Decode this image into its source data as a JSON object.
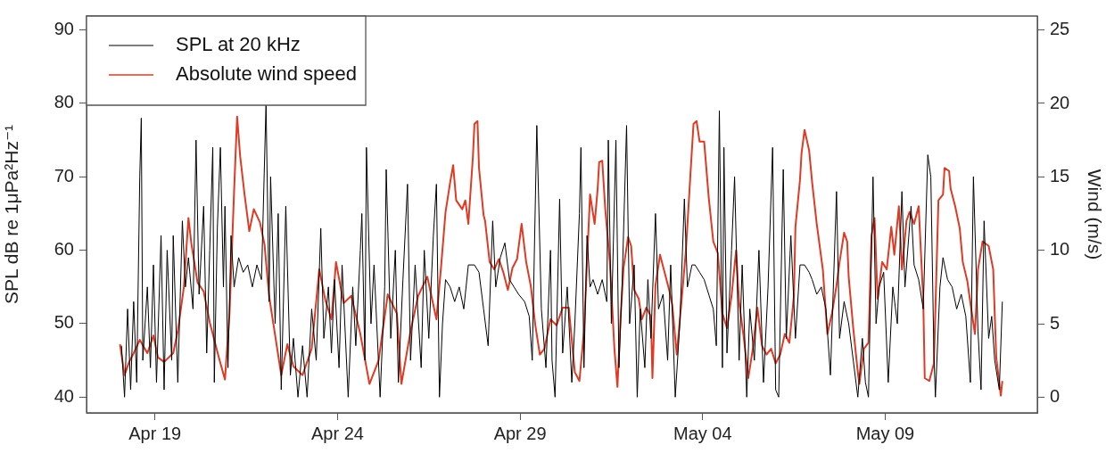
{
  "chart_data": {
    "type": "line",
    "ylabel": "SPL dB re 1μPa²Hz⁻¹",
    "y2label": "Wind (m/s)",
    "xlim": [
      "--04-17T03:00",
      "--05-13T04:00"
    ],
    "xticks": [
      {
        "value": "--04-19",
        "label": "Apr 19"
      },
      {
        "value": "--04-24",
        "label": "Apr 24"
      },
      {
        "value": "--04-29",
        "label": "Apr 29"
      },
      {
        "value": "--05-04",
        "label": "May 04"
      },
      {
        "value": "--05-09",
        "label": "May 09"
      }
    ],
    "ylim": [
      37.85,
      91.9
    ],
    "yticks": [
      40,
      50,
      60,
      70,
      80,
      90
    ],
    "y2lim": [
      -1.07,
      25.95
    ],
    "y2ticks": [
      0,
      5,
      10,
      15,
      20,
      25
    ],
    "grid": false,
    "legend": "top left",
    "marker": "none",
    "line_style": "solid",
    "series": [
      {
        "name": "SPL at 20 kHz",
        "color": "#000000",
        "x": [
          "--04-18T02:00",
          "--04-18T04:00",
          "--04-18T06:00",
          "--04-18T08:00",
          "--04-18T10:00",
          "--04-18T12:00",
          "--04-18T14:00",
          "--04-18T15:00",
          "--04-18T16:00",
          "--04-18T19:00",
          "--04-18T21:00",
          "--04-18T23:00",
          "--04-19T01:00",
          "--04-19T04:00",
          "--04-19T06:00",
          "--04-19T08:00",
          "--04-19T11:00",
          "--04-19T12:00",
          "--04-19T15:00",
          "--04-19T18:00",
          "--04-19T20:00",
          "--04-19T22:00",
          "--04-20T01:00",
          "--04-20T03:00",
          "--04-20T05:00",
          "--04-20T08:00",
          "--04-20T10:00",
          "--04-20T12:00",
          "--04-20T14:00",
          "--04-20T15:00",
          "--04-20T17:00",
          "--04-20T19:00",
          "--04-20T21:00",
          "--04-20T22:00",
          "--04-21T00:00",
          "--04-21T02:00",
          "--04-21T04:00",
          "--04-21T07:00",
          "--04-21T10:00",
          "--04-21T13:00",
          "--04-21T16:00",
          "--04-21T19:00",
          "--04-21T22:00",
          "--04-22T01:00",
          "--04-22T03:00",
          "--04-22T04:00",
          "--04-22T07:00",
          "--04-22T09:00",
          "--04-22T11:00",
          "--04-22T14:00",
          "--04-22T17:00",
          "--04-22T19:00",
          "--04-22T22:00",
          "--04-23T01:00",
          "--04-23T04:00",
          "--04-23T07:00",
          "--04-23T10:00",
          "--04-23T13:00",
          "--04-23T15:00",
          "--04-23T18:00",
          "--04-23T20:00",
          "--04-23T22:00",
          "--04-24T01:00",
          "--04-24T03:00",
          "--04-24T07:00",
          "--04-24T10:00",
          "--04-24T12:00",
          "--04-24T15:00",
          "--04-24T16:00",
          "--04-24T18:00",
          "--04-24T19:00",
          "--04-24T22:00",
          "--04-25T00:00",
          "--04-25T04:00",
          "--04-25T07:00",
          "--04-25T08:00",
          "--04-25T11:00",
          "--04-25T14:00",
          "--04-25T16:00",
          "--04-25T19:00",
          "--04-25T22:00",
          "--04-26T00:00",
          "--04-26T03:00",
          "--04-26T07:00",
          "--04-26T09:00",
          "--04-26T12:00",
          "--04-26T15:00",
          "--04-26T17:00",
          "--04-26T19:00",
          "--04-26T21:00",
          "--04-26T23:00",
          "--04-27T02:00",
          "--04-27T05:00",
          "--04-27T08:00",
          "--04-27T11:00",
          "--04-27T14:00",
          "--04-27T18:00",
          "--04-27T21:00",
          "--04-28T00:00",
          "--04-28T03:00",
          "--04-28T06:00",
          "--04-28T08:00",
          "--04-28T11:00",
          "--04-28T14:00",
          "--04-28T17:00",
          "--04-28T20:00",
          "--04-28T23:00",
          "--04-29T03:00",
          "--04-29T06:00",
          "--04-29T08:00",
          "--04-29T11:00",
          "--04-29T14:00",
          "--04-29T17:00",
          "--04-29T20:00",
          "--04-29T21:00",
          "--04-29T23:00",
          "--04-30T02:00",
          "--04-30T04:00",
          "--04-30T07:00",
          "--04-30T10:00",
          "--04-30T12:00",
          "--04-30T15:00",
          "--04-30T16:00",
          "--04-30T18:00",
          "--04-30T20:00",
          "--04-30T22:00",
          "--05-01T00:00",
          "--05-01T03:00",
          "--05-01T06:00",
          "--05-01T09:00",
          "--05-01T10:00",
          "--05-01T12:00",
          "--05-01T15:00",
          "--05-01T17:00",
          "--05-01T19:00",
          "--05-01T22:00",
          "--05-02T00:00",
          "--05-02T03:00",
          "--05-02T05:00",
          "--05-02T07:00",
          "--05-02T10:00",
          "--05-02T12:00",
          "--05-02T14:00",
          "--05-02T17:00",
          "--05-02T19:00",
          "--05-02T22:00",
          "--05-03T01:00",
          "--05-03T03:00",
          "--05-03T06:00",
          "--05-03T09:00",
          "--05-03T12:00",
          "--05-03T14:00",
          "--05-03T17:00",
          "--05-03T19:00",
          "--05-03T22:00",
          "--05-04T01:00",
          "--05-04T04:00",
          "--05-04T07:00",
          "--05-04T09:00",
          "--05-04T11:00",
          "--05-04T13:00",
          "--05-04T14:00",
          "--05-04T16:00",
          "--05-04T19:00",
          "--05-04T21:00",
          "--05-05T00:00",
          "--05-05T02:00",
          "--05-05T05:00",
          "--05-05T07:00",
          "--05-05T10:00",
          "--05-05T13:00",
          "--05-05T16:00",
          "--05-05T19:00",
          "--05-05T22:00",
          "--05-06T00:00",
          "--05-06T02:00",
          "--05-06T05:00",
          "--05-06T07:00",
          "--05-06T10:00",
          "--05-06T13:00",
          "--05-06T16:00",
          "--05-06T19:00",
          "--05-06T22:00",
          "--05-07T00:00",
          "--05-07T03:00",
          "--05-07T06:00",
          "--05-07T09:00",
          "--05-07T12:00",
          "--05-07T16:00",
          "--05-07T18:00",
          "--05-07T21:00",
          "--05-08T00:00",
          "--05-08T03:00",
          "--05-08T06:00",
          "--05-08T09:00",
          "--05-08T11:00",
          "--05-08T13:00",
          "--05-08T16:00",
          "--05-08T18:00",
          "--05-08T20:00",
          "--05-08T23:00",
          "--05-09T02:00",
          "--05-09T05:00",
          "--05-09T08:00",
          "--05-09T11:00",
          "--05-09T13:00",
          "--05-09T17:00",
          "--05-09T19:00",
          "--05-09T22:00",
          "--05-10T01:00",
          "--05-10T04:00",
          "--05-10T06:00",
          "--05-10T08:00",
          "--05-10T09:00",
          "--05-10T12:00",
          "--05-10T14:00",
          "--05-10T17:00",
          "--05-10T20:00",
          "--05-10T23:00",
          "--05-11T02:00",
          "--05-11T05:00",
          "--05-11T08:00",
          "--05-11T10:00",
          "--05-11T13:00",
          "--05-11T15:00",
          "--05-11T17:00",
          "--05-11T20:00",
          "--05-11T22:00",
          "--05-12T00:00",
          "--05-12T03:00",
          "--05-12T05:00"
        ],
        "values": [
          47,
          40,
          52,
          41,
          53,
          42,
          70,
          78,
          45,
          55,
          44,
          58,
          42,
          62,
          41,
          60,
          45,
          62,
          42,
          64,
          55,
          59,
          52,
          75,
          54,
          66,
          46,
          60,
          74,
          42,
          63,
          74,
          55,
          66,
          44,
          62,
          55,
          59,
          57,
          58,
          55,
          58,
          56,
          80,
          53,
          70,
          50,
          65,
          41,
          66,
          43,
          48,
          40,
          47,
          40,
          52,
          45,
          63,
          48,
          55,
          46,
          56,
          44,
          58,
          40,
          55,
          47,
          60,
          65,
          45,
          74,
          50,
          58,
          40,
          55,
          71,
          48,
          60,
          42,
          56,
          69,
          45,
          58,
          44,
          60,
          48,
          62,
          69,
          40,
          50,
          56,
          55,
          53,
          55,
          52,
          58,
          58,
          57,
          52,
          47,
          64,
          55,
          59,
          61,
          56,
          55,
          54,
          53,
          51,
          45,
          77,
          52,
          44,
          60,
          45,
          40,
          67,
          46,
          55,
          42,
          50,
          65,
          74,
          44,
          62,
          55,
          56,
          54,
          56,
          53,
          75,
          50,
          75,
          44,
          55,
          77,
          50,
          58,
          40,
          52,
          44,
          56,
          48,
          65,
          52,
          54,
          45,
          58,
          40,
          50,
          67,
          55,
          58,
          58,
          57,
          56,
          54,
          52,
          47,
          79,
          44,
          74,
          46,
          60,
          70,
          45,
          58,
          40,
          52,
          45,
          60,
          42,
          55,
          74,
          41,
          40,
          71,
          48,
          62,
          48,
          58,
          58,
          57,
          56,
          54,
          55,
          52,
          43,
          68,
          48,
          53,
          50,
          45,
          40,
          48,
          42,
          40,
          70,
          50,
          55,
          57,
          42,
          55,
          50,
          68,
          55,
          66,
          58,
          56,
          52,
          73,
          70,
          46,
          40,
          55,
          59,
          56,
          55,
          52,
          54,
          51,
          42,
          70,
          49,
          41,
          64,
          48,
          51,
          45,
          41,
          53
        ]
      },
      {
        "name": "Absolute wind speed",
        "color": "#e03a24",
        "axis": "y2",
        "x": [
          "--04-18T01:00",
          "--04-18T04:00",
          "--04-18T07:00",
          "--04-18T10:00",
          "--04-18T14:00",
          "--04-18T19:00",
          "--04-18T23:00",
          "--04-19T02:00",
          "--04-19T06:00",
          "--04-19T12:00",
          "--04-19T15:00",
          "--04-19T19:00",
          "--04-19T22:00",
          "--04-20T00:00",
          "--04-20T04:00",
          "--04-20T08:00",
          "--04-20T12:00",
          "--04-20T18:00",
          "--04-20T22:00",
          "--04-21T01:00",
          "--04-21T04:00",
          "--04-21T06:00",
          "--04-21T08:00",
          "--04-21T11:00",
          "--04-21T14:00",
          "--04-21T17:00",
          "--04-21T21:00",
          "--04-22T00:00",
          "--04-22T03:00",
          "--04-22T07:00",
          "--04-22T11:00",
          "--04-22T15:00",
          "--04-22T19:00",
          "--04-23T01:00",
          "--04-23T07:00",
          "--04-23T12:00",
          "--04-23T16:00",
          "--04-23T20:00",
          "--04-23T23:00",
          "--04-24T04:00",
          "--04-24T09:00",
          "--04-24T15:00",
          "--04-24T21:00",
          "--04-25T03:00",
          "--04-25T09:00",
          "--04-25T15:00",
          "--04-25T18:00",
          "--04-26T00:00",
          "--04-26T05:00",
          "--04-26T11:00",
          "--04-26T17:00",
          "--04-26T20:00",
          "--04-26T23:00",
          "--04-27T02:00",
          "--04-27T04:00",
          "--04-27T06:00",
          "--04-27T10:00",
          "--04-27T12:00",
          "--04-27T14:00",
          "--04-27T17:00",
          "--04-27T18:00",
          "--04-27T20:00",
          "--04-27T21:00",
          "--04-28T00:00",
          "--04-28T01:00",
          "--04-28T04:00",
          "--04-28T07:00",
          "--04-28T10:00",
          "--04-28T13:00",
          "--04-28T16:00",
          "--04-28T19:00",
          "--04-28T22:00",
          "--04-29T01:00",
          "--04-29T04:00",
          "--04-29T07:00",
          "--04-29T10:00",
          "--04-29T13:00",
          "--04-29T16:00",
          "--04-29T20:00",
          "--04-30T00:00",
          "--04-30T04:00",
          "--04-30T08:00",
          "--04-30T12:00",
          "--04-30T15:00",
          "--04-30T18:00",
          "--04-30T21:00",
          "--04-30T22:00",
          "--05-01T01:00",
          "--05-01T03:00",
          "--05-01T04:00",
          "--05-01T06:00",
          "--05-01T08:00",
          "--05-01T11:00",
          "--05-01T14:00",
          "--05-01T16:00",
          "--05-01T18:00",
          "--05-01T20:00",
          "--05-01T23:00",
          "--05-02T01:00",
          "--05-02T03:00",
          "--05-02T06:00",
          "--05-02T08:00",
          "--05-02T11:00",
          "--05-02T14:00",
          "--05-02T15:00",
          "--05-02T17:00",
          "--05-02T20:00",
          "--05-02T23:00",
          "--05-03T02:00",
          "--05-03T04:00",
          "--05-03T07:00",
          "--05-03T10:00",
          "--05-03T13:00",
          "--05-03T16:00",
          "--05-03T18:00",
          "--05-03T20:00",
          "--05-03T22:00",
          "--05-04T01:00",
          "--05-04T04:00",
          "--05-04T07:00",
          "--05-04T10:00",
          "--05-04T13:00",
          "--05-04T16:00",
          "--05-04T19:00",
          "--05-04T22:00",
          "--05-05T00:00",
          "--05-05T03:00",
          "--05-05T06:00",
          "--05-05T09:00",
          "--05-05T12:00",
          "--05-05T15:00",
          "--05-05T18:00",
          "--05-05T21:00",
          "--05-06T00:00",
          "--05-06T03:00",
          "--05-06T06:00",
          "--05-06T09:00",
          "--05-06T12:00",
          "--05-06T13:00",
          "--05-06T16:00",
          "--05-06T17:00",
          "--05-06T19:00",
          "--05-06T22:00",
          "--05-07T00:00",
          "--05-07T03:00",
          "--05-07T07:00",
          "--05-07T10:00",
          "--05-07T13:00",
          "--05-07T16:00",
          "--05-07T18:00",
          "--05-07T21:00",
          "--05-07T23:00",
          "--05-08T00:00",
          "--05-08T03:00",
          "--05-08T06:00",
          "--05-08T07:00",
          "--05-08T10:00",
          "--05-08T13:00",
          "--05-08T15:00",
          "--05-08T17:00",
          "--05-08T19:00",
          "--05-08T22:00",
          "--05-09T01:00",
          "--05-09T04:00",
          "--05-09T06:00",
          "--05-09T09:00",
          "--05-09T11:00",
          "--05-09T14:00",
          "--05-09T16:00",
          "--05-09T19:00",
          "--05-09T22:00",
          "--05-10T01:00",
          "--05-10T02:00",
          "--05-10T05:00",
          "--05-10T08:00",
          "--05-10T11:00",
          "--05-10T14:00",
          "--05-10T15:00",
          "--05-10T18:00",
          "--05-10T19:00",
          "--05-10T22:00",
          "--05-11T01:00",
          "--05-11T03:00",
          "--05-11T06:00",
          "--05-11T09:00",
          "--05-11T11:00",
          "--05-11T13:00",
          "--05-11T16:00",
          "--05-11T20:00",
          "--05-11T23:00",
          "--05-12T01:00",
          "--05-12T04:00",
          "--05-12T05:00"
        ],
        "values": [
          3.6,
          1.5,
          2.4,
          3,
          3.9,
          3,
          4.2,
          2.7,
          2.4,
          3,
          4.5,
          7.5,
          12.2,
          10.4,
          7.8,
          7.2,
          5.1,
          2.7,
          1.2,
          5.7,
          14,
          19.1,
          16.4,
          13.7,
          11.3,
          12.8,
          11.9,
          10.4,
          6.9,
          4.2,
          1.5,
          3.6,
          2.1,
          1.5,
          3.3,
          8.7,
          6.6,
          5.3,
          9.2,
          6.4,
          6.9,
          4.3,
          0.9,
          2.5,
          7,
          5.7,
          0.9,
          4.5,
          6.9,
          8.2,
          5.3,
          8.8,
          12.6,
          14.6,
          15.8,
          13.4,
          12.8,
          13.4,
          11.8,
          16.4,
          18.6,
          18.8,
          15.6,
          12.4,
          12,
          9.2,
          8.7,
          9.4,
          8.5,
          7.3,
          8.8,
          9.4,
          11.8,
          9.2,
          7.6,
          4.9,
          2.9,
          3.3,
          5.3,
          4.9,
          6.1,
          6.1,
          1.7,
          1.1,
          4.5,
          11.5,
          13.8,
          11.8,
          14.2,
          16,
          16.1,
          12.8,
          9.2,
          3.3,
          0.7,
          5.3,
          8.8,
          10.9,
          10.3,
          7.3,
          6.7,
          5.3,
          6.1,
          5.5,
          1.3,
          7.6,
          9.7,
          8.5,
          7.3,
          6.3,
          2.9,
          6.4,
          10,
          15.2,
          18.6,
          18.8,
          17.4,
          17.4,
          13.6,
          10.6,
          9.8,
          5.7,
          4.7,
          6.9,
          10,
          6.4,
          4.1,
          1.3,
          3.3,
          6.1,
          3.5,
          2.9,
          3.3,
          2.3,
          2.9,
          4.3,
          3.7,
          6.9,
          11.6,
          14.8,
          16.6,
          18.2,
          16.8,
          14.6,
          11.8,
          8.7,
          4.3,
          5.7,
          7.6,
          9.2,
          11.2,
          10.6,
          8.2,
          4.7,
          1.7,
          0.9,
          3.3,
          3.7,
          11,
          12.2,
          6.7,
          9.2,
          8.7,
          11.6,
          9.7,
          13,
          8.7,
          12,
          12.6,
          11.8,
          13,
          6.7,
          1.3,
          1.1,
          2.3,
          13.4,
          13.8,
          15.6,
          15.4,
          14.2,
          13,
          11.5,
          9.2,
          7.9,
          5.7,
          4.3,
          8.7,
          10.6,
          10.3,
          8.7,
          2.7,
          0.1,
          1.1
        ]
      }
    ]
  }
}
